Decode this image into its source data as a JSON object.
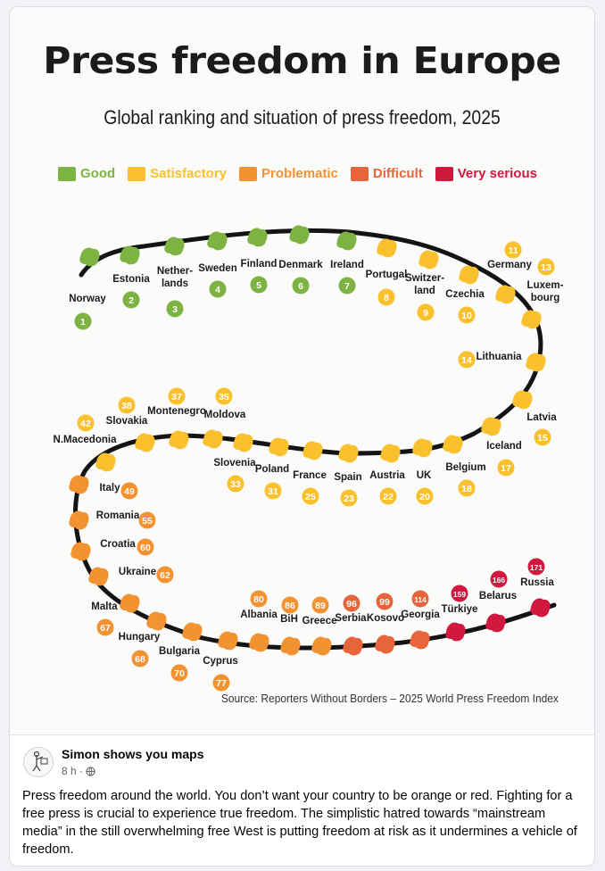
{
  "infographic": {
    "title": "Press freedom in Europe",
    "subtitle": "Global ranking and situation of press freedom, 2025",
    "legend": [
      {
        "label": "Good",
        "color": "#7cb342"
      },
      {
        "label": "Satisfactory",
        "color": "#fbc02d"
      },
      {
        "label": "Problematic",
        "color": "#f39230"
      },
      {
        "label": "Difficult",
        "color": "#e8643a"
      },
      {
        "label": "Very serious",
        "color": "#d2183f"
      }
    ],
    "countries": [
      {
        "name": "Norway",
        "rank": "1",
        "category": "Good"
      },
      {
        "name": "Estonia",
        "rank": "2",
        "category": "Good"
      },
      {
        "name": "Nether-\nlands",
        "rank": "3",
        "category": "Good"
      },
      {
        "name": "Sweden",
        "rank": "4",
        "category": "Good"
      },
      {
        "name": "Finland",
        "rank": "5",
        "category": "Good"
      },
      {
        "name": "Denmark",
        "rank": "6",
        "category": "Good"
      },
      {
        "name": "Ireland",
        "rank": "7",
        "category": "Good"
      },
      {
        "name": "Portugal",
        "rank": "8",
        "category": "Satisfactory"
      },
      {
        "name": "Switzer-\nland",
        "rank": "9",
        "category": "Satisfactory"
      },
      {
        "name": "Czechia",
        "rank": "10",
        "category": "Satisfactory"
      },
      {
        "name": "Germany",
        "rank": "11",
        "category": "Satisfactory"
      },
      {
        "name": "Luxem-\nbourg",
        "rank": "13",
        "category": "Satisfactory"
      },
      {
        "name": "Lithuania",
        "rank": "14",
        "category": "Satisfactory"
      },
      {
        "name": "Latvia",
        "rank": "15",
        "category": "Satisfactory"
      },
      {
        "name": "Iceland",
        "rank": "17",
        "category": "Satisfactory"
      },
      {
        "name": "Belgium",
        "rank": "18",
        "category": "Satisfactory"
      },
      {
        "name": "UK",
        "rank": "20",
        "category": "Satisfactory"
      },
      {
        "name": "Austria",
        "rank": "22",
        "category": "Satisfactory"
      },
      {
        "name": "Spain",
        "rank": "23",
        "category": "Satisfactory"
      },
      {
        "name": "France",
        "rank": "25",
        "category": "Satisfactory"
      },
      {
        "name": "Poland",
        "rank": "31",
        "category": "Satisfactory"
      },
      {
        "name": "Slovenia",
        "rank": "33",
        "category": "Satisfactory"
      },
      {
        "name": "Moldova",
        "rank": "35",
        "category": "Satisfactory"
      },
      {
        "name": "Montenegro",
        "rank": "37",
        "category": "Satisfactory"
      },
      {
        "name": "Slovakia",
        "rank": "38",
        "category": "Satisfactory"
      },
      {
        "name": "N.Macedonia",
        "rank": "42",
        "category": "Satisfactory"
      },
      {
        "name": "Italy",
        "rank": "49",
        "category": "Problematic"
      },
      {
        "name": "Romania",
        "rank": "55",
        "category": "Problematic"
      },
      {
        "name": "Croatia",
        "rank": "60",
        "category": "Problematic"
      },
      {
        "name": "Ukraine",
        "rank": "62",
        "category": "Problematic"
      },
      {
        "name": "Malta",
        "rank": "67",
        "category": "Problematic"
      },
      {
        "name": "Hungary",
        "rank": "68",
        "category": "Problematic"
      },
      {
        "name": "Bulgaria",
        "rank": "70",
        "category": "Problematic"
      },
      {
        "name": "Cyprus",
        "rank": "77",
        "category": "Problematic"
      },
      {
        "name": "Albania",
        "rank": "80",
        "category": "Problematic"
      },
      {
        "name": "BiH",
        "rank": "86",
        "category": "Problematic"
      },
      {
        "name": "Greece",
        "rank": "89",
        "category": "Problematic"
      },
      {
        "name": "Serbia",
        "rank": "96",
        "category": "Difficult"
      },
      {
        "name": "Kosovo",
        "rank": "99",
        "category": "Difficult"
      },
      {
        "name": "Georgia",
        "rank": "114",
        "category": "Difficult"
      },
      {
        "name": "Türkiye",
        "rank": "159",
        "category": "Very serious"
      },
      {
        "name": "Belarus",
        "rank": "166",
        "category": "Very serious"
      },
      {
        "name": "Russia",
        "rank": "171",
        "category": "Very serious"
      }
    ],
    "source": "Source: Reporters Without Borders – 2025 World Press Freedom Index"
  },
  "post": {
    "author": "Simon shows you maps",
    "time": "8 h",
    "separator": "·",
    "audience_icon": "globe-icon",
    "text": "Press freedom around the world. You don’t want your country to be orange or red. Fighting for a free press is crucial to experience true freedom. The simplistic hatred towards “mainstream media” in the still overwhelming free West is putting freedom at risk as it undermines a vehicle of freedom."
  }
}
